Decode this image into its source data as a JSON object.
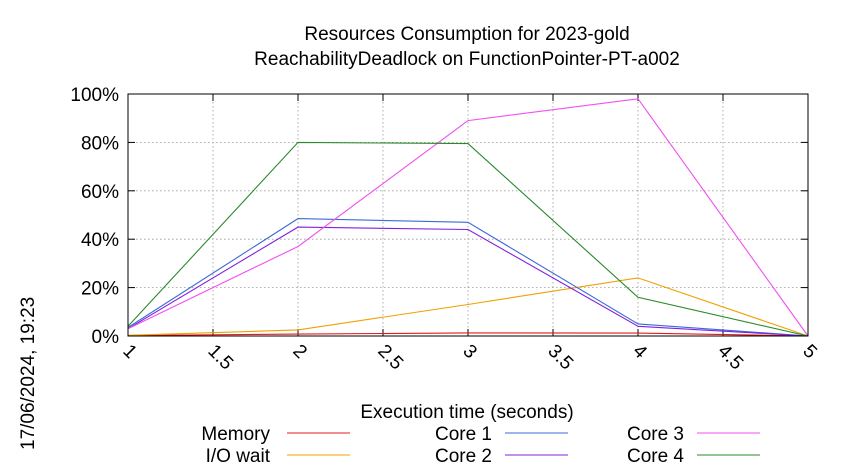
{
  "stamp": "17/06/2024, 19:23",
  "chart_data": {
    "type": "line",
    "title": [
      "Resources Consumption for 2023-gold",
      "ReachabilityDeadlock on FunctionPointer-PT-a002"
    ],
    "xlabel": "Execution time (seconds)",
    "ylabel": "",
    "xlim": [
      1,
      5
    ],
    "ylim": [
      0,
      100
    ],
    "x_ticks": [
      "1",
      "1.5",
      "2",
      "2.5",
      "3",
      "3.5",
      "4",
      "4.5",
      "5"
    ],
    "y_ticks": [
      "0%",
      "20%",
      "40%",
      "60%",
      "80%",
      "100%"
    ],
    "grid": true,
    "legend_position": "bottom",
    "x": [
      1,
      2,
      3,
      4,
      5
    ],
    "series": [
      {
        "name": "Memory",
        "color": "#e41a1c",
        "values": [
          0.2,
          0.8,
          1.3,
          1.2,
          0
        ]
      },
      {
        "name": "I/O wait",
        "color": "#f0a000",
        "values": [
          0.3,
          2.5,
          13,
          24,
          0
        ]
      },
      {
        "name": "Core 1",
        "color": "#3a6bd6",
        "values": [
          3.5,
          48.5,
          47,
          5,
          0
        ]
      },
      {
        "name": "Core 2",
        "color": "#8020e0",
        "values": [
          3,
          45,
          44,
          4,
          0
        ]
      },
      {
        "name": "Core 3",
        "color": "#f050f0",
        "values": [
          3,
          37,
          89,
          98,
          0
        ]
      },
      {
        "name": "Core 4",
        "color": "#2a8a2a",
        "values": [
          4,
          80,
          79.5,
          16,
          0
        ]
      }
    ]
  }
}
